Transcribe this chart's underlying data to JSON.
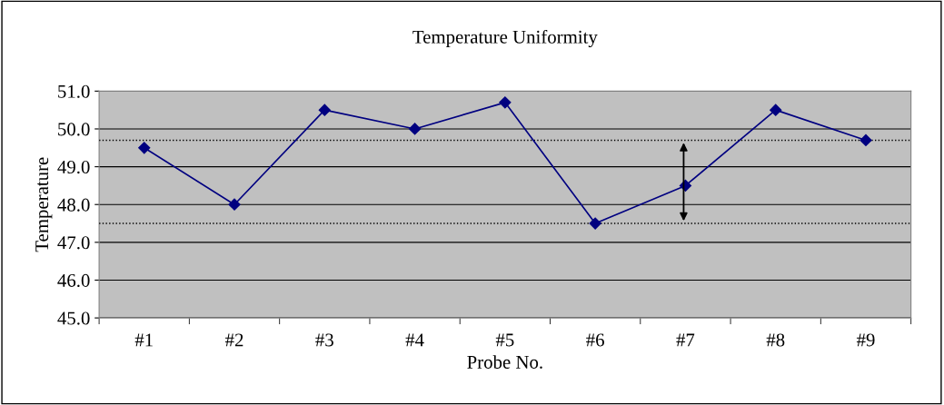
{
  "chart_data": {
    "type": "line",
    "title": "Temperature Uniformity",
    "xlabel": "Probe No.",
    "ylabel": "Temperature",
    "categories": [
      "#1",
      "#2",
      "#3",
      "#4",
      "#5",
      "#6",
      "#7",
      "#8",
      "#9"
    ],
    "series": [
      {
        "color": "#000080",
        "values": [
          49.5,
          48.0,
          50.5,
          50.0,
          50.7,
          47.5,
          48.5,
          50.5,
          49.7
        ]
      }
    ],
    "ylim": [
      45,
      51
    ],
    "yticks": [
      {
        "value": 45,
        "label": "45.0"
      },
      {
        "value": 46,
        "label": "46.0"
      },
      {
        "value": 47,
        "label": "47.0"
      },
      {
        "value": 48,
        "label": "48.0"
      },
      {
        "value": 49,
        "label": "49.0"
      },
      {
        "value": 50,
        "label": "50.0"
      },
      {
        "value": 51,
        "label": "51.0"
      }
    ],
    "ref_lines": [
      {
        "axis": "y",
        "value": 49.7,
        "color": "#000000",
        "line_style": "dotted"
      },
      {
        "axis": "y",
        "value": 47.5,
        "color": "#000000",
        "line_style": "dotted"
      }
    ],
    "grid": "y",
    "marker": "diamond",
    "line_style": "solid",
    "legend": false
  }
}
